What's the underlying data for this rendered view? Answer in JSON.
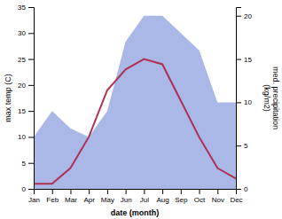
{
  "chart_data": {
    "type": "line",
    "categories": [
      "Jan",
      "Feb",
      "Mar",
      "Apr",
      "May",
      "Jun",
      "Jul",
      "Aug",
      "Sep",
      "Oct",
      "Nov",
      "Dec"
    ],
    "series": [
      {
        "type": "area",
        "axis": "y2",
        "color": "#aab8e8",
        "values": [
          6,
          9,
          7,
          6,
          9,
          17,
          20,
          20,
          18,
          16,
          10,
          10
        ]
      },
      {
        "type": "line",
        "color": "#b03050",
        "values": [
          1,
          1,
          4,
          10,
          19,
          23,
          25,
          24,
          17,
          10,
          4,
          2
        ]
      }
    ],
    "xlabel": "date (month)",
    "ylabel": "max temp (C)",
    "y2label": "med. precipitation\n(kg/m2)",
    "ylim": [
      0,
      35
    ],
    "yticks": [
      0,
      5,
      10,
      15,
      20,
      25,
      30,
      35
    ],
    "y2lim": [
      0,
      21
    ],
    "y2ticks": [
      0,
      5,
      10,
      15,
      20
    ],
    "grid": false
  }
}
